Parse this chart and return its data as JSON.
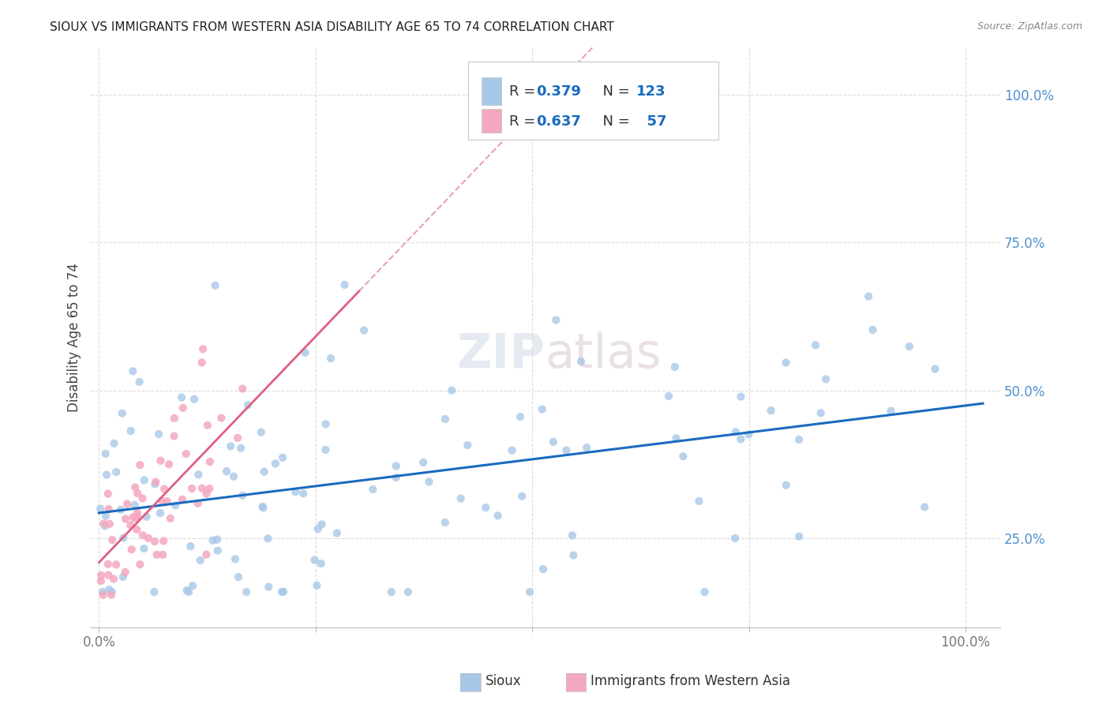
{
  "title": "SIOUX VS IMMIGRANTS FROM WESTERN ASIA DISABILITY AGE 65 TO 74 CORRELATION CHART",
  "source": "Source: ZipAtlas.com",
  "ylabel": "Disability Age 65 to 74",
  "sioux_scatter_color": "#a8c8e8",
  "immigrants_scatter_color": "#f4a8c0",
  "sioux_line_color": "#1a6bbf",
  "immigrants_line_color": "#e06080",
  "background_color": "#ffffff",
  "grid_color": "#d8d8d8",
  "ytick_color": "#5090d0",
  "xtick_color": "#777777",
  "r_color": "#1a6bbf",
  "legend_box_color": "#cccccc",
  "watermark": "ZIPatlas",
  "sioux_R": "0.379",
  "sioux_N": "123",
  "immigrants_R": "0.637",
  "immigrants_N": "57",
  "legend_label_1": "Sioux",
  "legend_label_2": "Immigrants from Western Asia"
}
